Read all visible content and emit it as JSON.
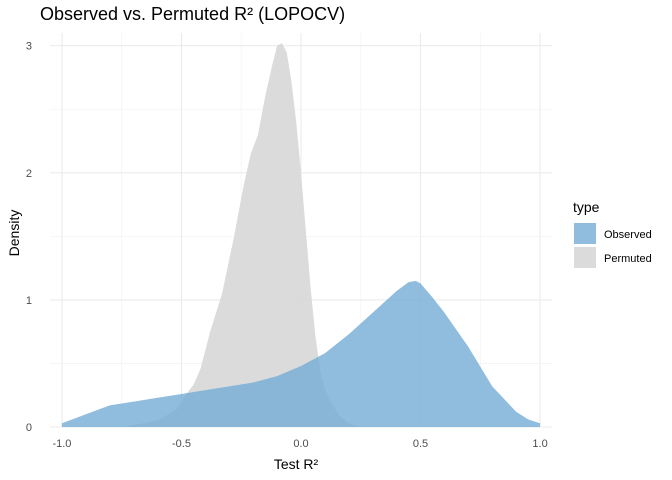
{
  "chart_data": {
    "type": "area",
    "subtype": "density",
    "title": "Observed vs. Permuted R² (LOPOCV)",
    "xlabel": "Test R²",
    "ylabel": "Density",
    "xlim": [
      -1.05,
      1.05
    ],
    "ylim": [
      0,
      3.1
    ],
    "x_ticks": [
      -1.0,
      -0.5,
      0.0,
      0.5,
      1.0
    ],
    "x_tick_labels": [
      "-1.0",
      "-0.5",
      "0.0",
      "0.5",
      "1.0"
    ],
    "y_ticks": [
      0,
      1,
      2,
      3
    ],
    "y_tick_labels": [
      "0",
      "1",
      "2",
      "3"
    ],
    "grid": true,
    "legend": {
      "title": "type",
      "position": "right"
    },
    "series": [
      {
        "name": "Permuted",
        "color": "#d9d9d9",
        "opacity": 0.95,
        "x": [
          -0.75,
          -0.6,
          -0.52,
          -0.48,
          -0.45,
          -0.42,
          -0.38,
          -0.33,
          -0.28,
          -0.24,
          -0.21,
          -0.18,
          -0.15,
          -0.12,
          -0.1,
          -0.08,
          -0.06,
          -0.04,
          -0.02,
          0.0,
          0.02,
          0.04,
          0.06,
          0.08,
          0.1,
          0.13,
          0.16,
          0.2,
          0.25
        ],
        "y": [
          0.0,
          0.05,
          0.14,
          0.26,
          0.33,
          0.46,
          0.75,
          1.05,
          1.5,
          1.9,
          2.15,
          2.3,
          2.6,
          2.85,
          3.0,
          3.02,
          2.95,
          2.72,
          2.4,
          2.0,
          1.55,
          1.1,
          0.72,
          0.45,
          0.3,
          0.18,
          0.09,
          0.03,
          0.0
        ]
      },
      {
        "name": "Observed",
        "color": "#74acd6",
        "opacity": 0.8,
        "x": [
          -1.0,
          -0.9,
          -0.8,
          -0.7,
          -0.6,
          -0.5,
          -0.4,
          -0.3,
          -0.2,
          -0.1,
          0.0,
          0.1,
          0.2,
          0.3,
          0.4,
          0.45,
          0.48,
          0.5,
          0.55,
          0.6,
          0.7,
          0.8,
          0.9,
          0.95,
          1.0
        ],
        "y": [
          0.03,
          0.1,
          0.17,
          0.2,
          0.23,
          0.26,
          0.29,
          0.32,
          0.35,
          0.4,
          0.48,
          0.58,
          0.73,
          0.9,
          1.07,
          1.14,
          1.15,
          1.13,
          1.02,
          0.9,
          0.63,
          0.32,
          0.12,
          0.06,
          0.03
        ]
      }
    ]
  }
}
